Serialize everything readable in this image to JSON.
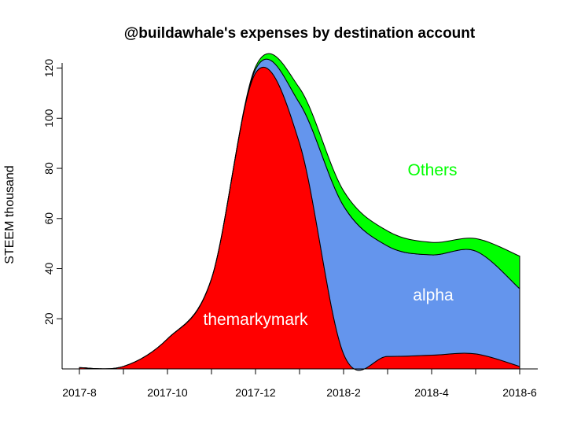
{
  "chart_data": {
    "type": "area",
    "stacked": true,
    "title": "@buildawhale's expenses by destination account",
    "ylabel": "STEEM thousand",
    "xlabel": "",
    "x": [
      "2017-8",
      "2017-9",
      "2017-10",
      "2017-11",
      "2017-12",
      "2018-1",
      "2018-2",
      "2018-3",
      "2018-4",
      "2018-5",
      "2018-6"
    ],
    "x_tick_labels": [
      "2017-8",
      "2017-10",
      "2017-12",
      "2018-2",
      "2018-4",
      "2018-6"
    ],
    "ylim": [
      0,
      123
    ],
    "y_ticks": [
      20,
      40,
      60,
      80,
      100,
      120
    ],
    "series": [
      {
        "name": "themarkymark",
        "color": "#ff0000",
        "label_color": "#ffffff",
        "values": [
          0.5,
          1,
          12,
          36,
          118,
          90,
          6,
          5,
          5.5,
          6,
          1
        ]
      },
      {
        "name": "alpha",
        "color": "#6495ed",
        "label_color": "#ffffff",
        "values": [
          0,
          0,
          0,
          0,
          1.5,
          16,
          59,
          44,
          40,
          41,
          31
        ]
      },
      {
        "name": "Others",
        "color": "#00ff00",
        "label_color": "#00ff00",
        "values": [
          0,
          0,
          0,
          0,
          1,
          6,
          6,
          6,
          5,
          5,
          13
        ]
      }
    ],
    "grid": false,
    "legend": "inline labels"
  }
}
